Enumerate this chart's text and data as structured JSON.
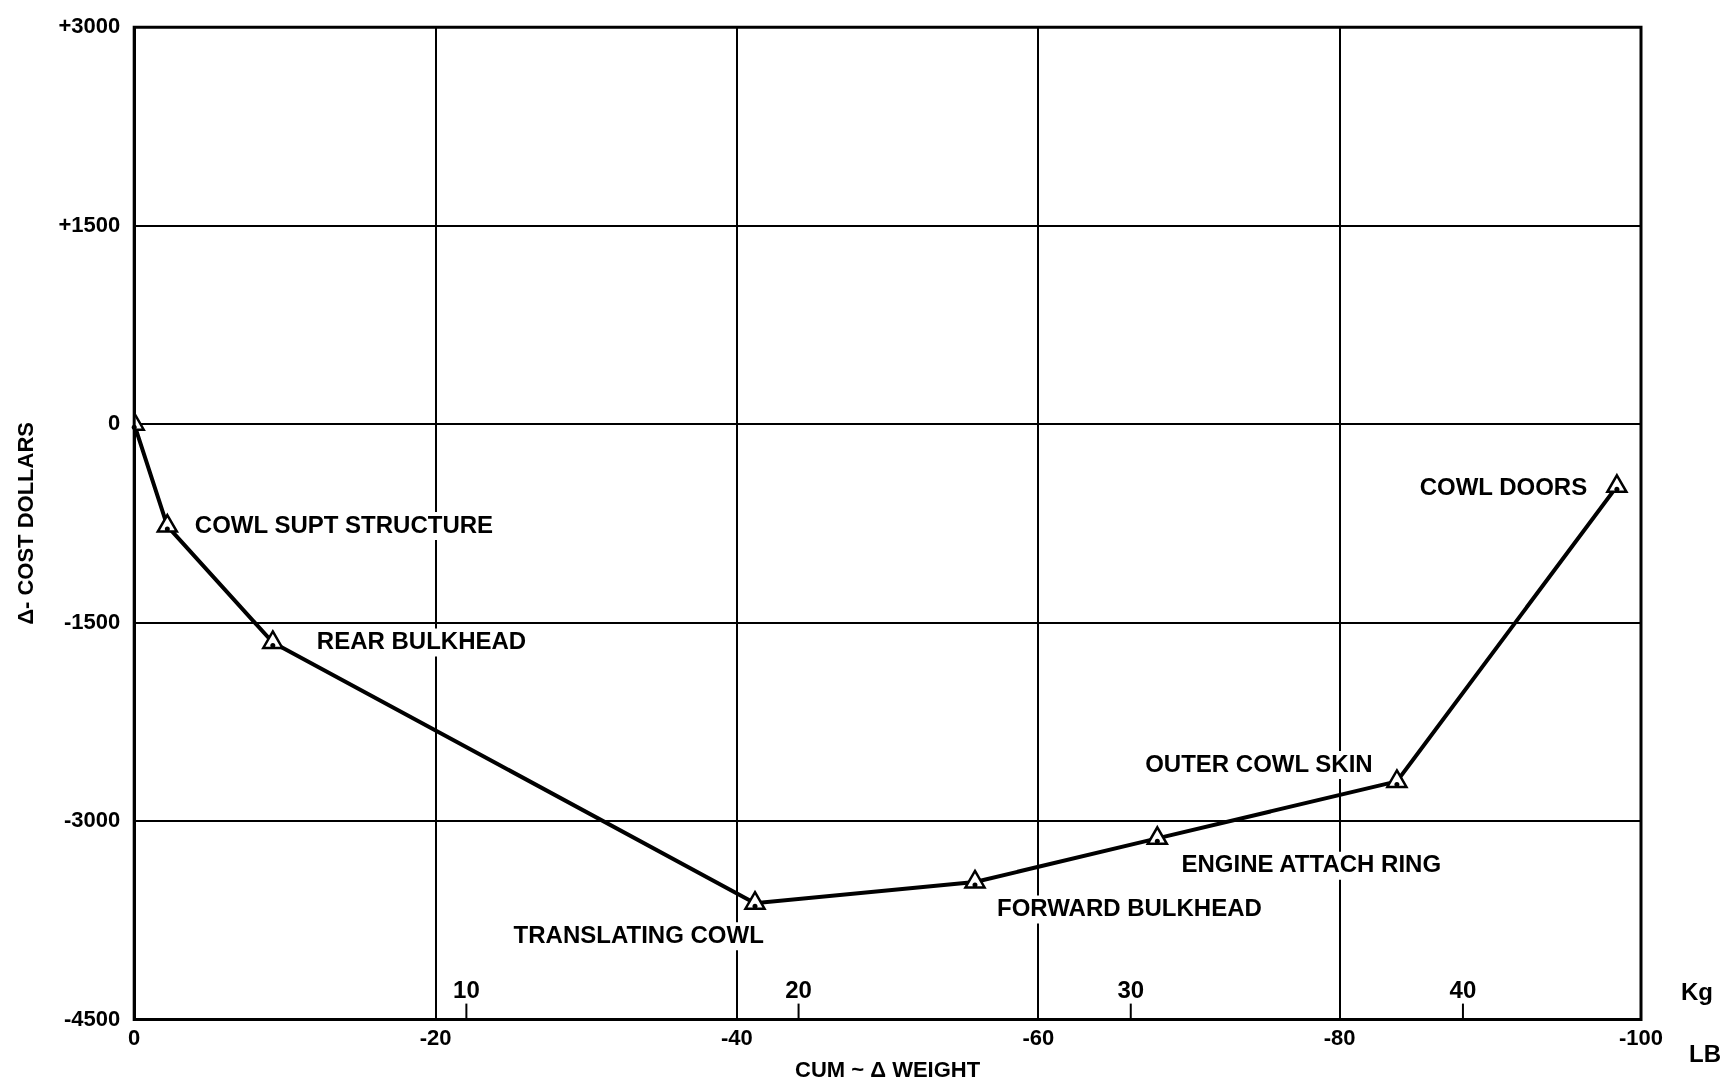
{
  "chart_data": {
    "type": "line",
    "xlabel": "CUM ~ Δ WEIGHT",
    "ylabel": "Δ- COST DOLLARS",
    "x2label": "Kg",
    "x": [
      0,
      -2.2,
      -9.2,
      -41.2,
      -55.8,
      -67.9,
      -83.8,
      -98.4
    ],
    "values": [
      0,
      -770,
      -1650,
      -3620,
      -3460,
      -3130,
      -2700,
      -470
    ],
    "color": "#000000",
    "marker": "triangle",
    "line_style": "solid",
    "grid": true,
    "legend": false,
    "xlim": [
      0,
      -100
    ],
    "xticks": [
      0,
      -20,
      -40,
      -60,
      -80,
      -100
    ],
    "x2lim": [
      0,
      45.36
    ],
    "x2ticks": [
      10,
      20,
      30,
      40
    ],
    "ylim": [
      -4500,
      3000
    ],
    "yticks": [
      {
        "value": -4500,
        "label": "-4500"
      },
      {
        "value": -3000,
        "label": "-3000"
      },
      {
        "value": -1500,
        "label": "-1500"
      },
      {
        "value": 0,
        "label": "0"
      },
      {
        "value": 1500,
        "label": "+1500"
      },
      {
        "value": 3000,
        "label": "+3000"
      }
    ],
    "annotations": [
      {
        "text": "COWL SUPT STRUCTURE",
        "x": -2.2,
        "y": -770
      },
      {
        "text": "REAR BULKHEAD",
        "x": -9.2,
        "y": -1650
      },
      {
        "text": "TRANSLATING COWL",
        "x": -41.2,
        "y": -3620
      },
      {
        "text": "FORWARD BULKHEAD",
        "x": -55.8,
        "y": -3460
      },
      {
        "text": "ENGINE ATTACH RING",
        "x": -67.9,
        "y": -3130
      },
      {
        "text": "OUTER COWL SKIN",
        "x": -83.8,
        "y": -2700
      },
      {
        "text": "COWL DOORS",
        "x": -98.4,
        "y": -470
      },
      "LB"
    ]
  }
}
